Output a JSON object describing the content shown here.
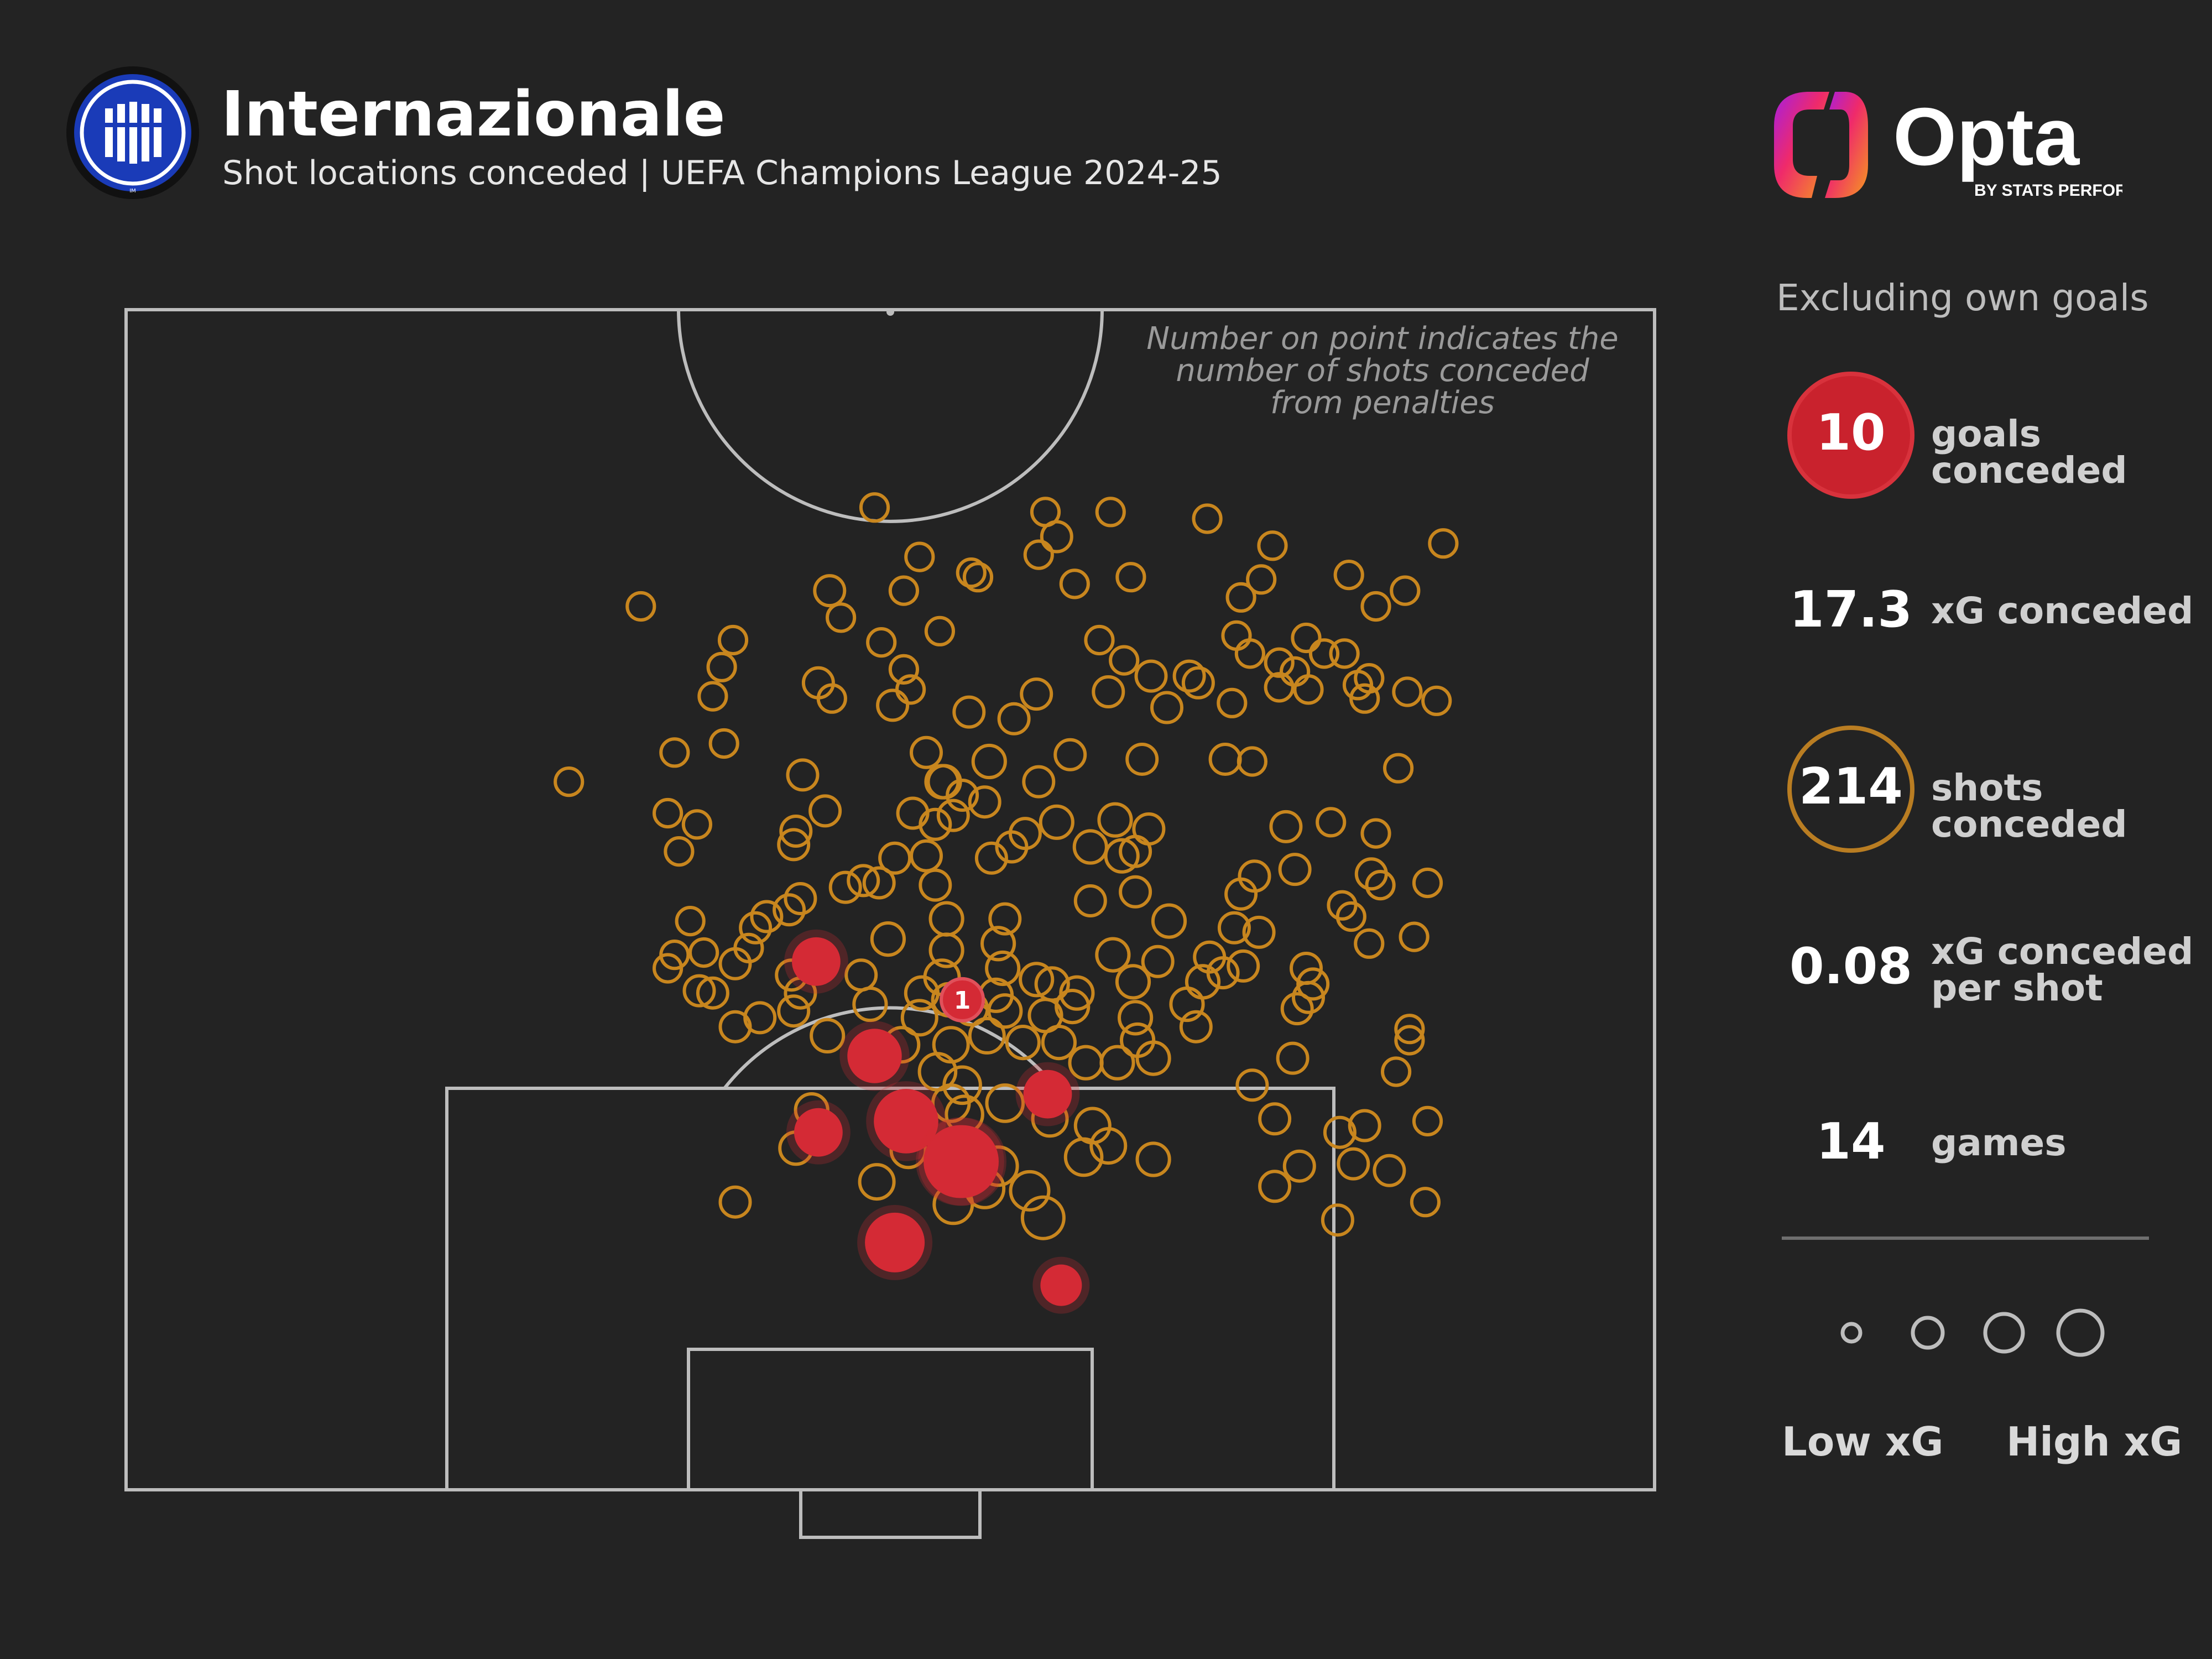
{
  "header": {
    "title": "Internazionale",
    "subtitle": "Shot locations conceded | UEFA Champions League 2024-25",
    "crest_letters": "IM",
    "brand": "Opta",
    "brand_tagline": "BY STATS PERFORM"
  },
  "colors": {
    "background": "#232323",
    "pitch_lines": "#bdbdbd",
    "shot": "#c8861e",
    "goal": "#d42a35",
    "crest_blue": "#1a3bb8"
  },
  "note": [
    "Number on point indicates the",
    "number of shots conceded",
    "from penalties"
  ],
  "stats": {
    "excluding": "Excluding own goals",
    "goals_value": "10",
    "goals_label": "goals conceded",
    "xg_value": "17.3",
    "xg_label": "xG conceded",
    "shots_value": "214",
    "shots_label": "shots conceded",
    "xg_per_shot_value": "0.08",
    "xg_per_shot_label_1": "xG conceded",
    "xg_per_shot_label_2": "per shot",
    "games_value": "14",
    "games_label": "games"
  },
  "legend": {
    "low": "Low xG",
    "high": "High xG"
  },
  "chart_data": {
    "type": "scatter",
    "description_units": "pitch coordinates in meters; x = distance from left touchline (0-68), y = distance from goal line (0-52.5)",
    "shots": [
      [
        43.8,
        43.5,
        0.03
      ],
      [
        40.9,
        43.5,
        0.03
      ],
      [
        41.4,
        42.4,
        0.04
      ],
      [
        48.1,
        43.2,
        0.03
      ],
      [
        51.0,
        42.0,
        0.03
      ],
      [
        58.6,
        42.1,
        0.03
      ],
      [
        33.3,
        43.7,
        0.03
      ],
      [
        35.3,
        41.5,
        0.03
      ],
      [
        34.6,
        40.0,
        0.03
      ],
      [
        31.3,
        40.0,
        0.04
      ],
      [
        44.7,
        40.6,
        0.03
      ],
      [
        42.2,
        40.3,
        0.03
      ],
      [
        40.6,
        41.6,
        0.03
      ],
      [
        37.6,
        40.8,
        0.03
      ],
      [
        37.9,
        40.6,
        0.03
      ],
      [
        49.6,
        39.7,
        0.03
      ],
      [
        22.9,
        39.3,
        0.03
      ],
      [
        50.5,
        40.5,
        0.03
      ],
      [
        54.4,
        40.7,
        0.03
      ],
      [
        55.6,
        39.3,
        0.03
      ],
      [
        56.9,
        40.0,
        0.03
      ],
      [
        27.0,
        37.8,
        0.03
      ],
      [
        31.8,
        38.8,
        0.03
      ],
      [
        33.6,
        37.7,
        0.03
      ],
      [
        36.2,
        38.2,
        0.03
      ],
      [
        43.3,
        37.8,
        0.03
      ],
      [
        44.4,
        36.9,
        0.03
      ],
      [
        49.4,
        38.0,
        0.03
      ],
      [
        50.0,
        37.2,
        0.03
      ],
      [
        51.3,
        36.8,
        0.03
      ],
      [
        52.5,
        37.9,
        0.03
      ],
      [
        53.3,
        37.2,
        0.03
      ],
      [
        52.0,
        36.4,
        0.03
      ],
      [
        54.2,
        37.2,
        0.03
      ],
      [
        55.3,
        36.1,
        0.03
      ],
      [
        47.3,
        36.2,
        0.04
      ],
      [
        45.6,
        36.2,
        0.04
      ],
      [
        47.7,
        35.9,
        0.04
      ],
      [
        26.5,
        36.6,
        0.03
      ],
      [
        26.1,
        35.3,
        0.03
      ],
      [
        30.8,
        35.9,
        0.04
      ],
      [
        31.4,
        35.2,
        0.03
      ],
      [
        34.6,
        36.5,
        0.03
      ],
      [
        34.9,
        35.6,
        0.03
      ],
      [
        40.5,
        35.4,
        0.04
      ],
      [
        43.7,
        35.5,
        0.04
      ],
      [
        46.3,
        34.8,
        0.04
      ],
      [
        51.3,
        35.7,
        0.03
      ],
      [
        49.2,
        35.0,
        0.03
      ],
      [
        52.6,
        35.6,
        0.03
      ],
      [
        54.8,
        35.8,
        0.03
      ],
      [
        55.1,
        35.2,
        0.03
      ],
      [
        57.0,
        35.5,
        0.03
      ],
      [
        58.3,
        35.1,
        0.03
      ],
      [
        34.1,
        34.9,
        0.04
      ],
      [
        37.5,
        34.6,
        0.04
      ],
      [
        39.5,
        34.3,
        0.04
      ],
      [
        26.6,
        33.2,
        0.03
      ],
      [
        24.4,
        32.8,
        0.03
      ],
      [
        35.6,
        32.8,
        0.04
      ],
      [
        38.4,
        32.4,
        0.05
      ],
      [
        42.0,
        32.7,
        0.04
      ],
      [
        45.2,
        32.5,
        0.04
      ],
      [
        48.9,
        32.5,
        0.04
      ],
      [
        50.1,
        32.4,
        0.03
      ],
      [
        56.6,
        32.1,
        0.03
      ],
      [
        19.7,
        31.5,
        0.03
      ],
      [
        36.3,
        31.5,
        0.05
      ],
      [
        36.4,
        31.5,
        0.05
      ],
      [
        40.6,
        31.5,
        0.04
      ],
      [
        30.1,
        31.8,
        0.04
      ],
      [
        37.2,
        30.9,
        0.04
      ],
      [
        38.2,
        30.6,
        0.04
      ],
      [
        24.1,
        30.1,
        0.03
      ],
      [
        25.4,
        29.6,
        0.03
      ],
      [
        29.8,
        29.3,
        0.04
      ],
      [
        31.1,
        30.2,
        0.04
      ],
      [
        35.0,
        30.1,
        0.04
      ],
      [
        36.0,
        29.6,
        0.04
      ],
      [
        36.8,
        30.0,
        0.04
      ],
      [
        40.0,
        29.2,
        0.04
      ],
      [
        41.4,
        29.7,
        0.05
      ],
      [
        44.0,
        29.8,
        0.05
      ],
      [
        45.5,
        29.4,
        0.04
      ],
      [
        51.6,
        29.5,
        0.04
      ],
      [
        53.6,
        29.7,
        0.03
      ],
      [
        55.6,
        29.2,
        0.03
      ],
      [
        24.6,
        28.4,
        0.03
      ],
      [
        29.7,
        28.7,
        0.04
      ],
      [
        34.2,
        28.1,
        0.04
      ],
      [
        35.6,
        28.2,
        0.04
      ],
      [
        38.5,
        28.1,
        0.04
      ],
      [
        39.4,
        28.6,
        0.04
      ],
      [
        42.9,
        28.6,
        0.05
      ],
      [
        44.3,
        28.2,
        0.05
      ],
      [
        44.9,
        28.4,
        0.04
      ],
      [
        50.2,
        27.3,
        0.04
      ],
      [
        52.0,
        27.6,
        0.04
      ],
      [
        55.4,
        27.4,
        0.04
      ],
      [
        55.8,
        26.9,
        0.03
      ],
      [
        57.9,
        27.0,
        0.03
      ],
      [
        30.0,
        26.3,
        0.04
      ],
      [
        32.0,
        26.8,
        0.04
      ],
      [
        32.8,
        27.1,
        0.04
      ],
      [
        33.5,
        27.0,
        0.04
      ],
      [
        36.0,
        26.9,
        0.04
      ],
      [
        42.9,
        26.2,
        0.04
      ],
      [
        44.9,
        26.6,
        0.04
      ],
      [
        49.6,
        26.5,
        0.04
      ],
      [
        54.1,
        26.0,
        0.03
      ],
      [
        25.1,
        25.3,
        0.03
      ],
      [
        28.0,
        25.0,
        0.04
      ],
      [
        28.5,
        25.5,
        0.04
      ],
      [
        29.5,
        25.8,
        0.04
      ],
      [
        36.5,
        25.4,
        0.05
      ],
      [
        39.1,
        25.4,
        0.04
      ],
      [
        46.4,
        25.3,
        0.05
      ],
      [
        49.3,
        25.0,
        0.04
      ],
      [
        50.4,
        24.8,
        0.04
      ],
      [
        54.5,
        25.5,
        0.03
      ],
      [
        24.4,
        23.8,
        0.03
      ],
      [
        25.7,
        23.9,
        0.03
      ],
      [
        27.7,
        24.1,
        0.03
      ],
      [
        33.9,
        24.5,
        0.05
      ],
      [
        36.5,
        24.0,
        0.05
      ],
      [
        38.8,
        24.3,
        0.05
      ],
      [
        43.9,
        23.8,
        0.05
      ],
      [
        45.9,
        23.5,
        0.04
      ],
      [
        48.2,
        23.7,
        0.04
      ],
      [
        49.7,
        23.3,
        0.04
      ],
      [
        55.3,
        24.3,
        0.03
      ],
      [
        57.3,
        24.6,
        0.03
      ],
      [
        24.1,
        23.2,
        0.03
      ],
      [
        27.1,
        23.4,
        0.04
      ],
      [
        29.6,
        22.9,
        0.04
      ],
      [
        32.7,
        22.9,
        0.04
      ],
      [
        35.4,
        22.1,
        0.05
      ],
      [
        36.3,
        22.8,
        0.06
      ],
      [
        38.7,
        22.0,
        0.05
      ],
      [
        39.0,
        23.2,
        0.05
      ],
      [
        40.5,
        22.7,
        0.05
      ],
      [
        41.2,
        22.5,
        0.05
      ],
      [
        42.3,
        22.1,
        0.05
      ],
      [
        44.8,
        22.6,
        0.05
      ],
      [
        47.9,
        22.6,
        0.05
      ],
      [
        48.8,
        23.0,
        0.04
      ],
      [
        52.5,
        23.2,
        0.04
      ],
      [
        52.8,
        22.5,
        0.04
      ],
      [
        25.5,
        22.2,
        0.04
      ],
      [
        26.1,
        22.1,
        0.04
      ],
      [
        30.0,
        22.1,
        0.04
      ],
      [
        33.1,
        21.6,
        0.05
      ],
      [
        35.3,
        21.0,
        0.06
      ],
      [
        36.6,
        21.8,
        0.05
      ],
      [
        37.6,
        21.4,
        0.05
      ],
      [
        39.1,
        21.3,
        0.05
      ],
      [
        40.9,
        21.1,
        0.05
      ],
      [
        42.1,
        21.5,
        0.05
      ],
      [
        44.9,
        21.0,
        0.05
      ],
      [
        47.2,
        21.6,
        0.05
      ],
      [
        52.6,
        21.9,
        0.04
      ],
      [
        52.1,
        21.4,
        0.04
      ],
      [
        57.1,
        20.5,
        0.03
      ],
      [
        27.1,
        20.6,
        0.04
      ],
      [
        28.2,
        21.0,
        0.04
      ],
      [
        29.7,
        21.3,
        0.04
      ],
      [
        31.2,
        20.2,
        0.05
      ],
      [
        34.5,
        19.8,
        0.06
      ],
      [
        36.7,
        19.8,
        0.06
      ],
      [
        38.3,
        20.2,
        0.06
      ],
      [
        39.9,
        19.9,
        0.05
      ],
      [
        41.5,
        19.9,
        0.05
      ],
      [
        44.1,
        19.0,
        0.05
      ],
      [
        45.0,
        20.0,
        0.05
      ],
      [
        47.6,
        20.6,
        0.04
      ],
      [
        57.1,
        20.0,
        0.03
      ],
      [
        51.9,
        19.2,
        0.04
      ],
      [
        36.1,
        18.6,
        0.07
      ],
      [
        37.2,
        18.0,
        0.07
      ],
      [
        42.7,
        19.0,
        0.05
      ],
      [
        45.7,
        19.2,
        0.05
      ],
      [
        50.1,
        18.0,
        0.04
      ],
      [
        56.5,
        18.6,
        0.03
      ],
      [
        36.7,
        17.2,
        0.07
      ],
      [
        37.3,
        16.7,
        0.07
      ],
      [
        39.1,
        17.2,
        0.07
      ],
      [
        41.1,
        16.5,
        0.06
      ],
      [
        43.0,
        16.2,
        0.06
      ],
      [
        34.5,
        16.6,
        0.06
      ],
      [
        30.5,
        16.9,
        0.05
      ],
      [
        51.1,
        16.5,
        0.04
      ],
      [
        55.1,
        16.2,
        0.04
      ],
      [
        54.0,
        15.9,
        0.04
      ],
      [
        57.9,
        16.4,
        0.03
      ],
      [
        29.8,
        15.2,
        0.05
      ],
      [
        34.8,
        15.1,
        0.06
      ],
      [
        37.3,
        14.9,
        0.07
      ],
      [
        38.8,
        14.4,
        0.08
      ],
      [
        42.6,
        14.8,
        0.07
      ],
      [
        43.7,
        15.3,
        0.06
      ],
      [
        45.7,
        14.7,
        0.05
      ],
      [
        52.2,
        14.4,
        0.04
      ],
      [
        54.6,
        14.5,
        0.04
      ],
      [
        56.2,
        14.2,
        0.04
      ],
      [
        33.4,
        13.7,
        0.06
      ],
      [
        36.6,
        14.4,
        0.08
      ],
      [
        38.2,
        13.4,
        0.08
      ],
      [
        40.2,
        13.3,
        0.08
      ],
      [
        51.1,
        13.5,
        0.04
      ],
      [
        27.1,
        12.8,
        0.04
      ],
      [
        36.8,
        12.7,
        0.08
      ],
      [
        40.8,
        12.1,
        0.1
      ],
      [
        53.9,
        12.0,
        0.04
      ],
      [
        57.8,
        12.8,
        0.03
      ]
    ],
    "goals": [
      [
        30.7,
        23.5,
        0.15
      ],
      [
        33.3,
        19.3,
        0.2
      ],
      [
        30.8,
        15.9,
        0.15
      ],
      [
        34.7,
        16.4,
        0.3
      ],
      [
        41.0,
        17.6,
        0.15
      ],
      [
        37.1,
        14.6,
        0.4
      ],
      [
        37.2,
        14.6,
        0.4
      ],
      [
        34.2,
        11.0,
        0.25
      ],
      [
        41.6,
        9.1,
        0.1
      ]
    ],
    "penalty": {
      "x": 37.2,
      "y": 21.8,
      "count": "1"
    },
    "legend_sizes_xg": [
      0.05,
      0.15,
      0.25,
      0.35
    ],
    "pitch": {
      "width": 68,
      "half_length": 52.5
    }
  }
}
